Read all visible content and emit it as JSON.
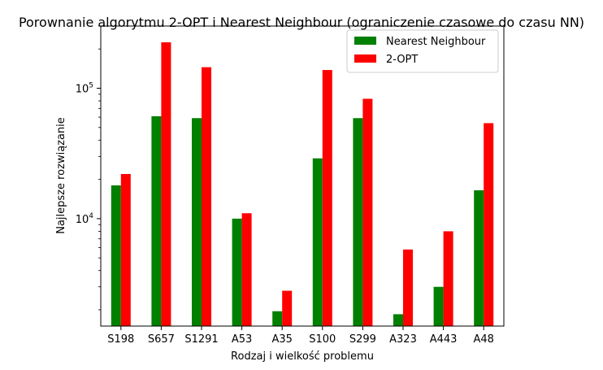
{
  "chart_data": {
    "type": "bar",
    "title": "Porownanie algorytmu 2-OPT i Nearest Neighbour (ograniczenie czasowe do czasu NN)",
    "xlabel": "Rodzaj i wielkość problemu",
    "ylabel": "Najlepsze rozwiązanie",
    "yscale": "log",
    "ylim": [
      1500,
      300000
    ],
    "yticks": [
      {
        "value": 10000,
        "base": "10",
        "exp": "4"
      },
      {
        "value": 100000,
        "base": "10",
        "exp": "5"
      }
    ],
    "categories": [
      "S198",
      "S657",
      "S1291",
      "A53",
      "A35",
      "S100",
      "S299",
      "A323",
      "A443",
      "A48"
    ],
    "series": [
      {
        "name": "Nearest Neighbour",
        "color": "#008000",
        "values": [
          18000,
          61000,
          59000,
          10000,
          1950,
          29000,
          59000,
          1850,
          3000,
          16500
        ]
      },
      {
        "name": "2-OPT",
        "color": "#ff0000",
        "values": [
          22000,
          225000,
          145000,
          11000,
          2800,
          138000,
          83000,
          5800,
          8000,
          54000
        ]
      }
    ],
    "legend": "top-right",
    "grid": false
  }
}
